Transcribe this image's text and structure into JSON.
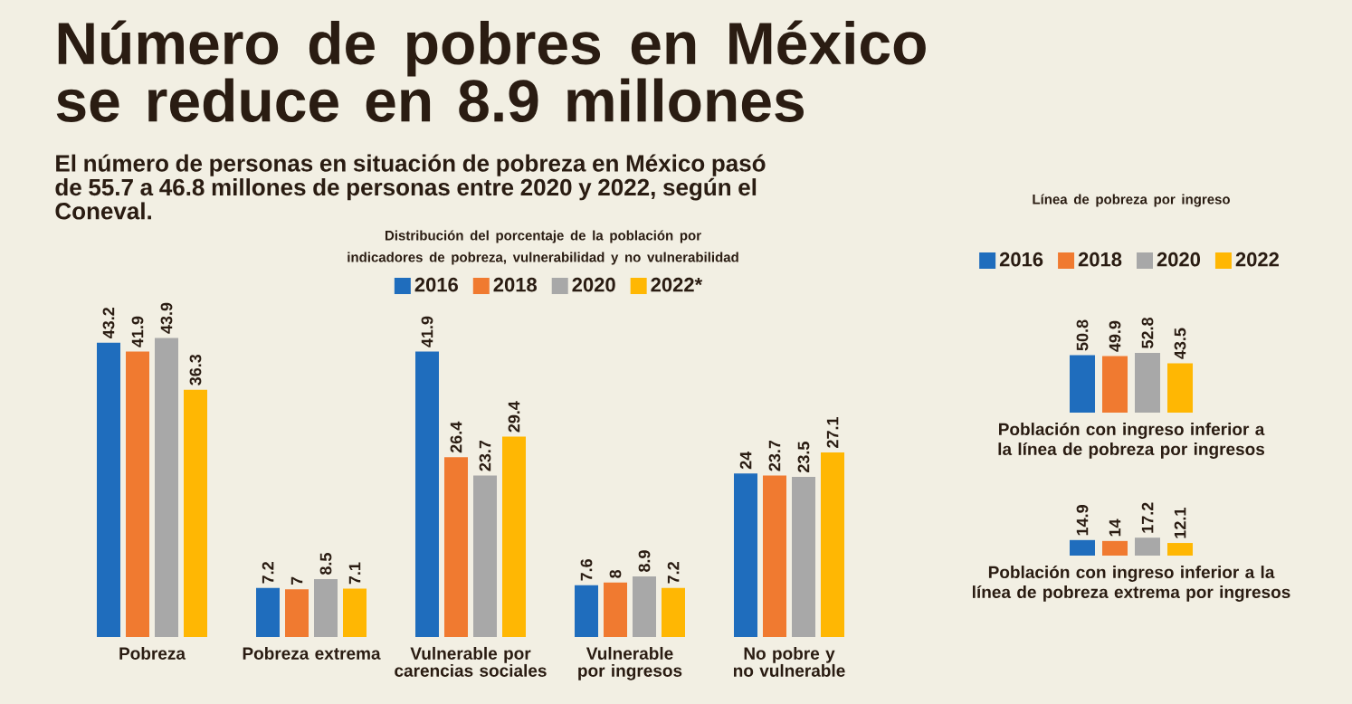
{
  "chart_data": [
    {
      "type": "other",
      "title": "Número de pobres en México se reduce en 8.9 millones",
      "subtitle": "El número de personas en situación de pobreza en México pasó de 55.7 a 46.8 millones de personas entre 2020 y 2022, según el Coneval."
    },
    {
      "type": "bar",
      "title": "Distribución del porcentaje de la población por indicadores de pobreza, vulnerabilidad y no vulnerabilidad",
      "categories": [
        "Pobreza",
        "Pobreza extrema",
        "Vulnerable por carencias sociales",
        "Vulnerable por ingresos",
        "No pobre y no vulnerable"
      ],
      "series": [
        {
          "name": "2016",
          "color": "#1f6dbd",
          "values": [
            43.2,
            7.2,
            41.9,
            7.6,
            24
          ]
        },
        {
          "name": "2018",
          "color": "#f07a30",
          "values": [
            41.9,
            7,
            26.4,
            8,
            23.7
          ]
        },
        {
          "name": "2020",
          "color": "#a8a8a8",
          "values": [
            43.9,
            8.5,
            23.7,
            8.9,
            23.5
          ]
        },
        {
          "name": "2022*",
          "color": "#ffb703",
          "values": [
            36.3,
            7.1,
            29.4,
            7.2,
            27.1
          ]
        }
      ],
      "data_labels": true,
      "legend": "top"
    },
    {
      "type": "bar",
      "title": "Línea de pobreza por ingreso",
      "categories": [
        "Población con ingreso inferior a la línea de pobreza por ingresos"
      ],
      "series": [
        {
          "name": "2016",
          "color": "#1f6dbd",
          "values": [
            50.8
          ]
        },
        {
          "name": "2018",
          "color": "#f07a30",
          "values": [
            49.9
          ]
        },
        {
          "name": "2020",
          "color": "#a8a8a8",
          "values": [
            52.8
          ]
        },
        {
          "name": "2022",
          "color": "#ffb703",
          "values": [
            43.5
          ]
        }
      ],
      "data_labels": true,
      "legend": "top"
    },
    {
      "type": "bar",
      "categories": [
        "Población con ingreso inferior a la línea de pobreza extrema por ingresos"
      ],
      "series": [
        {
          "color": "#1f6dbd",
          "values": [
            14.9
          ]
        },
        {
          "color": "#f07a30",
          "values": [
            14
          ]
        },
        {
          "color": "#a8a8a8",
          "values": [
            17.2
          ]
        },
        {
          "color": "#ffb703",
          "values": [
            12.1
          ]
        }
      ],
      "data_labels": true
    }
  ]
}
